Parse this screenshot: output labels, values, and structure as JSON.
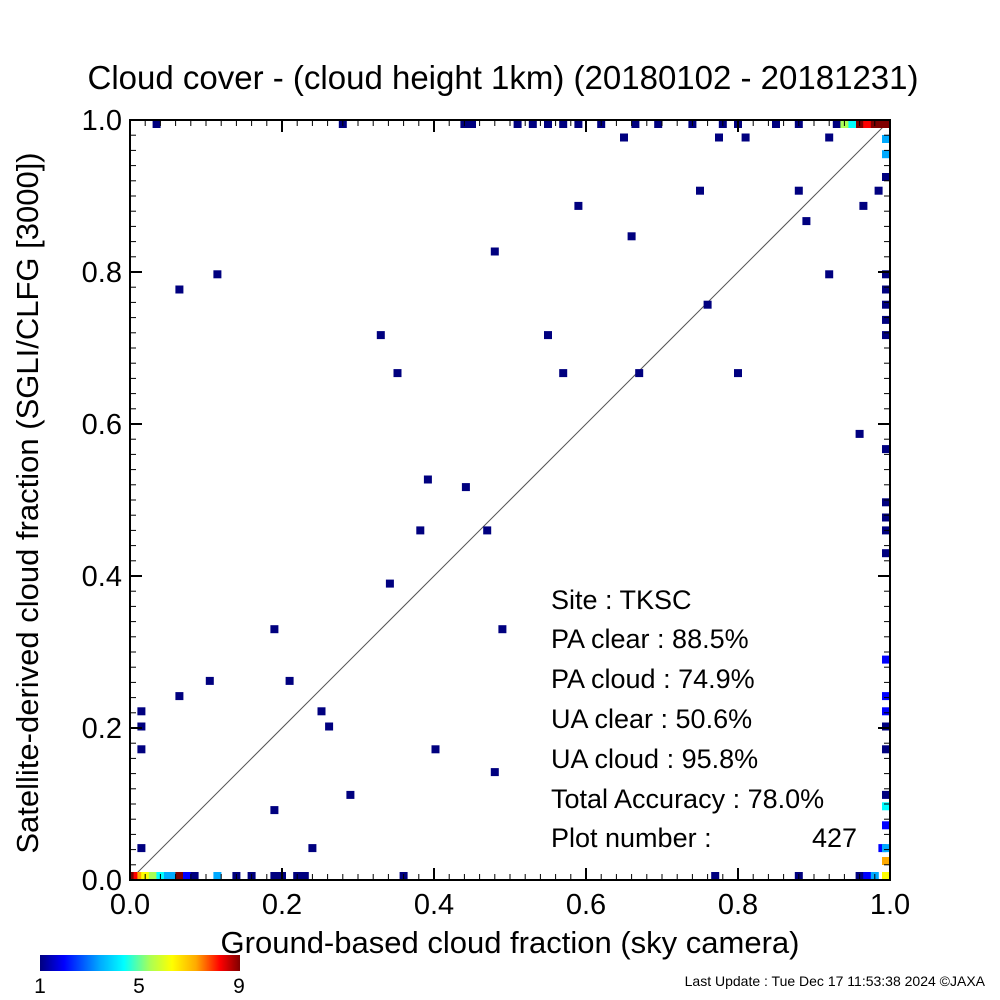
{
  "chart_data": {
    "type": "scatter",
    "title": "Cloud cover - (cloud height 1km)  (20180102 - 20181231)",
    "xlabel": "Ground-based cloud fraction (sky camera)",
    "ylabel": "Satellite-derived cloud fraction (SGLI/CLFG [3000])",
    "xlim": [
      0.0,
      1.0
    ],
    "ylim": [
      0.0,
      1.0
    ],
    "x_ticks": [
      "0.0",
      "0.2",
      "0.4",
      "0.6",
      "0.8",
      "1.0"
    ],
    "y_ticks": [
      "0.0",
      "0.2",
      "0.4",
      "0.6",
      "0.8",
      "1.0"
    ],
    "grid": false,
    "reference_line": "y = x",
    "colorbar": {
      "min_label": "1",
      "mid_label": "5",
      "max_label": "9",
      "colors": [
        "#00007f",
        "#0000ff",
        "#00aaff",
        "#00ffff",
        "#aaff55",
        "#ffff00",
        "#ffaa00",
        "#ff0000",
        "#7f0000"
      ]
    },
    "points": [
      {
        "x": 0.035,
        "y": 1.0,
        "n": 1
      },
      {
        "x": 0.28,
        "y": 1.0,
        "n": 1
      },
      {
        "x": 0.44,
        "y": 1.0,
        "n": 1
      },
      {
        "x": 0.45,
        "y": 1.0,
        "n": 1
      },
      {
        "x": 0.51,
        "y": 1.0,
        "n": 1
      },
      {
        "x": 0.53,
        "y": 1.0,
        "n": 1
      },
      {
        "x": 0.55,
        "y": 1.0,
        "n": 1
      },
      {
        "x": 0.57,
        "y": 1.0,
        "n": 1
      },
      {
        "x": 0.59,
        "y": 1.0,
        "n": 1
      },
      {
        "x": 0.62,
        "y": 1.0,
        "n": 1
      },
      {
        "x": 0.665,
        "y": 1.0,
        "n": 1
      },
      {
        "x": 0.695,
        "y": 1.0,
        "n": 1
      },
      {
        "x": 0.74,
        "y": 1.0,
        "n": 1
      },
      {
        "x": 0.78,
        "y": 1.0,
        "n": 1
      },
      {
        "x": 0.8,
        "y": 1.0,
        "n": 1
      },
      {
        "x": 0.85,
        "y": 1.0,
        "n": 1
      },
      {
        "x": 0.88,
        "y": 1.0,
        "n": 1
      },
      {
        "x": 0.93,
        "y": 1.0,
        "n": 1
      },
      {
        "x": 0.65,
        "y": 0.977,
        "n": 1
      },
      {
        "x": 0.775,
        "y": 0.977,
        "n": 1
      },
      {
        "x": 0.81,
        "y": 0.977,
        "n": 1
      },
      {
        "x": 0.92,
        "y": 0.977,
        "n": 1
      },
      {
        "x": 0.75,
        "y": 0.907,
        "n": 1
      },
      {
        "x": 0.88,
        "y": 0.907,
        "n": 1
      },
      {
        "x": 0.985,
        "y": 0.907,
        "n": 1
      },
      {
        "x": 0.59,
        "y": 0.887,
        "n": 1
      },
      {
        "x": 0.965,
        "y": 0.887,
        "n": 1
      },
      {
        "x": 0.89,
        "y": 0.867,
        "n": 1
      },
      {
        "x": 0.66,
        "y": 0.847,
        "n": 1
      },
      {
        "x": 0.48,
        "y": 0.827,
        "n": 1
      },
      {
        "x": 0.115,
        "y": 0.797,
        "n": 1
      },
      {
        "x": 0.92,
        "y": 0.797,
        "n": 1
      },
      {
        "x": 0.065,
        "y": 0.777,
        "n": 1
      },
      {
        "x": 0.76,
        "y": 0.757,
        "n": 1
      },
      {
        "x": 0.33,
        "y": 0.717,
        "n": 1
      },
      {
        "x": 0.55,
        "y": 0.717,
        "n": 1
      },
      {
        "x": 0.352,
        "y": 0.667,
        "n": 1
      },
      {
        "x": 0.57,
        "y": 0.667,
        "n": 1
      },
      {
        "x": 0.67,
        "y": 0.667,
        "n": 1
      },
      {
        "x": 0.8,
        "y": 0.667,
        "n": 1
      },
      {
        "x": 0.96,
        "y": 0.587,
        "n": 1
      },
      {
        "x": 0.392,
        "y": 0.527,
        "n": 1
      },
      {
        "x": 0.442,
        "y": 0.517,
        "n": 1
      },
      {
        "x": 0.382,
        "y": 0.46,
        "n": 1
      },
      {
        "x": 0.47,
        "y": 0.46,
        "n": 1
      },
      {
        "x": 0.342,
        "y": 0.39,
        "n": 1
      },
      {
        "x": 0.19,
        "y": 0.33,
        "n": 1
      },
      {
        "x": 0.49,
        "y": 0.33,
        "n": 1
      },
      {
        "x": 0.105,
        "y": 0.262,
        "n": 1
      },
      {
        "x": 0.21,
        "y": 0.262,
        "n": 1
      },
      {
        "x": 0.065,
        "y": 0.242,
        "n": 1
      },
      {
        "x": 0.015,
        "y": 0.222,
        "n": 1
      },
      {
        "x": 0.252,
        "y": 0.222,
        "n": 1
      },
      {
        "x": 0.015,
        "y": 0.202,
        "n": 1
      },
      {
        "x": 0.262,
        "y": 0.202,
        "n": 1
      },
      {
        "x": 0.015,
        "y": 0.172,
        "n": 1
      },
      {
        "x": 0.402,
        "y": 0.172,
        "n": 1
      },
      {
        "x": 0.48,
        "y": 0.142,
        "n": 1
      },
      {
        "x": 0.29,
        "y": 0.112,
        "n": 1
      },
      {
        "x": 0.19,
        "y": 0.092,
        "n": 1
      },
      {
        "x": 0.015,
        "y": 0.042,
        "n": 1
      },
      {
        "x": 0.24,
        "y": 0.042,
        "n": 1
      },
      {
        "x": 0.99,
        "y": 0.042,
        "n": 2
      },
      {
        "x": 1.0,
        "y": 0.975,
        "n": 3
      },
      {
        "x": 1.0,
        "y": 0.955,
        "n": 3
      },
      {
        "x": 1.0,
        "y": 0.925,
        "n": 1
      },
      {
        "x": 1.0,
        "y": 0.797,
        "n": 1
      },
      {
        "x": 1.0,
        "y": 0.777,
        "n": 1
      },
      {
        "x": 1.0,
        "y": 0.757,
        "n": 1
      },
      {
        "x": 1.0,
        "y": 0.737,
        "n": 1
      },
      {
        "x": 1.0,
        "y": 0.717,
        "n": 1
      },
      {
        "x": 1.0,
        "y": 0.567,
        "n": 1
      },
      {
        "x": 1.0,
        "y": 0.497,
        "n": 1
      },
      {
        "x": 1.0,
        "y": 0.477,
        "n": 1
      },
      {
        "x": 1.0,
        "y": 0.46,
        "n": 1
      },
      {
        "x": 1.0,
        "y": 0.43,
        "n": 1
      },
      {
        "x": 1.0,
        "y": 0.29,
        "n": 2
      },
      {
        "x": 1.0,
        "y": 0.242,
        "n": 2
      },
      {
        "x": 1.0,
        "y": 0.222,
        "n": 2
      },
      {
        "x": 1.0,
        "y": 0.202,
        "n": 1
      },
      {
        "x": 1.0,
        "y": 0.172,
        "n": 1
      },
      {
        "x": 1.0,
        "y": 0.112,
        "n": 1
      },
      {
        "x": 1.0,
        "y": 0.097,
        "n": 4
      },
      {
        "x": 1.0,
        "y": 0.072,
        "n": 2
      },
      {
        "x": 1.0,
        "y": 0.042,
        "n": 3
      },
      {
        "x": 1.0,
        "y": 0.025,
        "n": 7
      },
      {
        "x": 1.0,
        "y": 0.0,
        "n": 6
      },
      {
        "x": 0.0,
        "y": 0.0,
        "n": 9
      },
      {
        "x": 0.005,
        "y": 0.0,
        "n": 9
      },
      {
        "x": 0.01,
        "y": 0.0,
        "n": 8
      },
      {
        "x": 0.015,
        "y": 0.0,
        "n": 7
      },
      {
        "x": 0.02,
        "y": 0.0,
        "n": 6
      },
      {
        "x": 0.025,
        "y": 0.0,
        "n": 6
      },
      {
        "x": 0.03,
        "y": 0.0,
        "n": 5
      },
      {
        "x": 0.04,
        "y": 0.0,
        "n": 4
      },
      {
        "x": 0.05,
        "y": 0.0,
        "n": 3
      },
      {
        "x": 0.06,
        "y": 0.0,
        "n": 3
      },
      {
        "x": 0.065,
        "y": 0.0,
        "n": 9
      },
      {
        "x": 0.075,
        "y": 0.0,
        "n": 2
      },
      {
        "x": 0.085,
        "y": 0.0,
        "n": 1
      },
      {
        "x": 0.115,
        "y": 0.0,
        "n": 3
      },
      {
        "x": 0.14,
        "y": 0.0,
        "n": 1
      },
      {
        "x": 0.16,
        "y": 0.0,
        "n": 1
      },
      {
        "x": 0.19,
        "y": 0.0,
        "n": 1
      },
      {
        "x": 0.2,
        "y": 0.0,
        "n": 1
      },
      {
        "x": 0.22,
        "y": 0.0,
        "n": 1
      },
      {
        "x": 0.23,
        "y": 0.0,
        "n": 1
      },
      {
        "x": 0.36,
        "y": 0.0,
        "n": 1
      },
      {
        "x": 0.77,
        "y": 0.0,
        "n": 1
      },
      {
        "x": 0.88,
        "y": 0.0,
        "n": 1
      },
      {
        "x": 0.96,
        "y": 0.0,
        "n": 1
      },
      {
        "x": 0.97,
        "y": 0.0,
        "n": 2
      },
      {
        "x": 0.98,
        "y": 0.0,
        "n": 3
      },
      {
        "x": 0.96,
        "y": 1.0,
        "n": 9
      },
      {
        "x": 0.97,
        "y": 1.0,
        "n": 8
      },
      {
        "x": 0.98,
        "y": 1.0,
        "n": 9
      },
      {
        "x": 0.99,
        "y": 1.0,
        "n": 9
      },
      {
        "x": 1.0,
        "y": 1.0,
        "n": 9
      },
      {
        "x": 0.95,
        "y": 1.0,
        "n": 4
      },
      {
        "x": 0.94,
        "y": 1.0,
        "n": 5
      }
    ],
    "stats": {
      "site": "Site : TKSC",
      "pa_clear": "PA clear :  88.5%",
      "pa_cloud": "PA cloud :  74.9%",
      "ua_clear": "UA clear :  50.6%",
      "ua_cloud": "UA cloud :  95.8%",
      "total_accuracy": "Total Accuracy :  78.0%",
      "plot_number_label": "Plot number :",
      "plot_number_value": "427"
    }
  },
  "footer": {
    "last_update": "Last Update : Tue Dec 17 11:53:38 2024  ©JAXA"
  }
}
